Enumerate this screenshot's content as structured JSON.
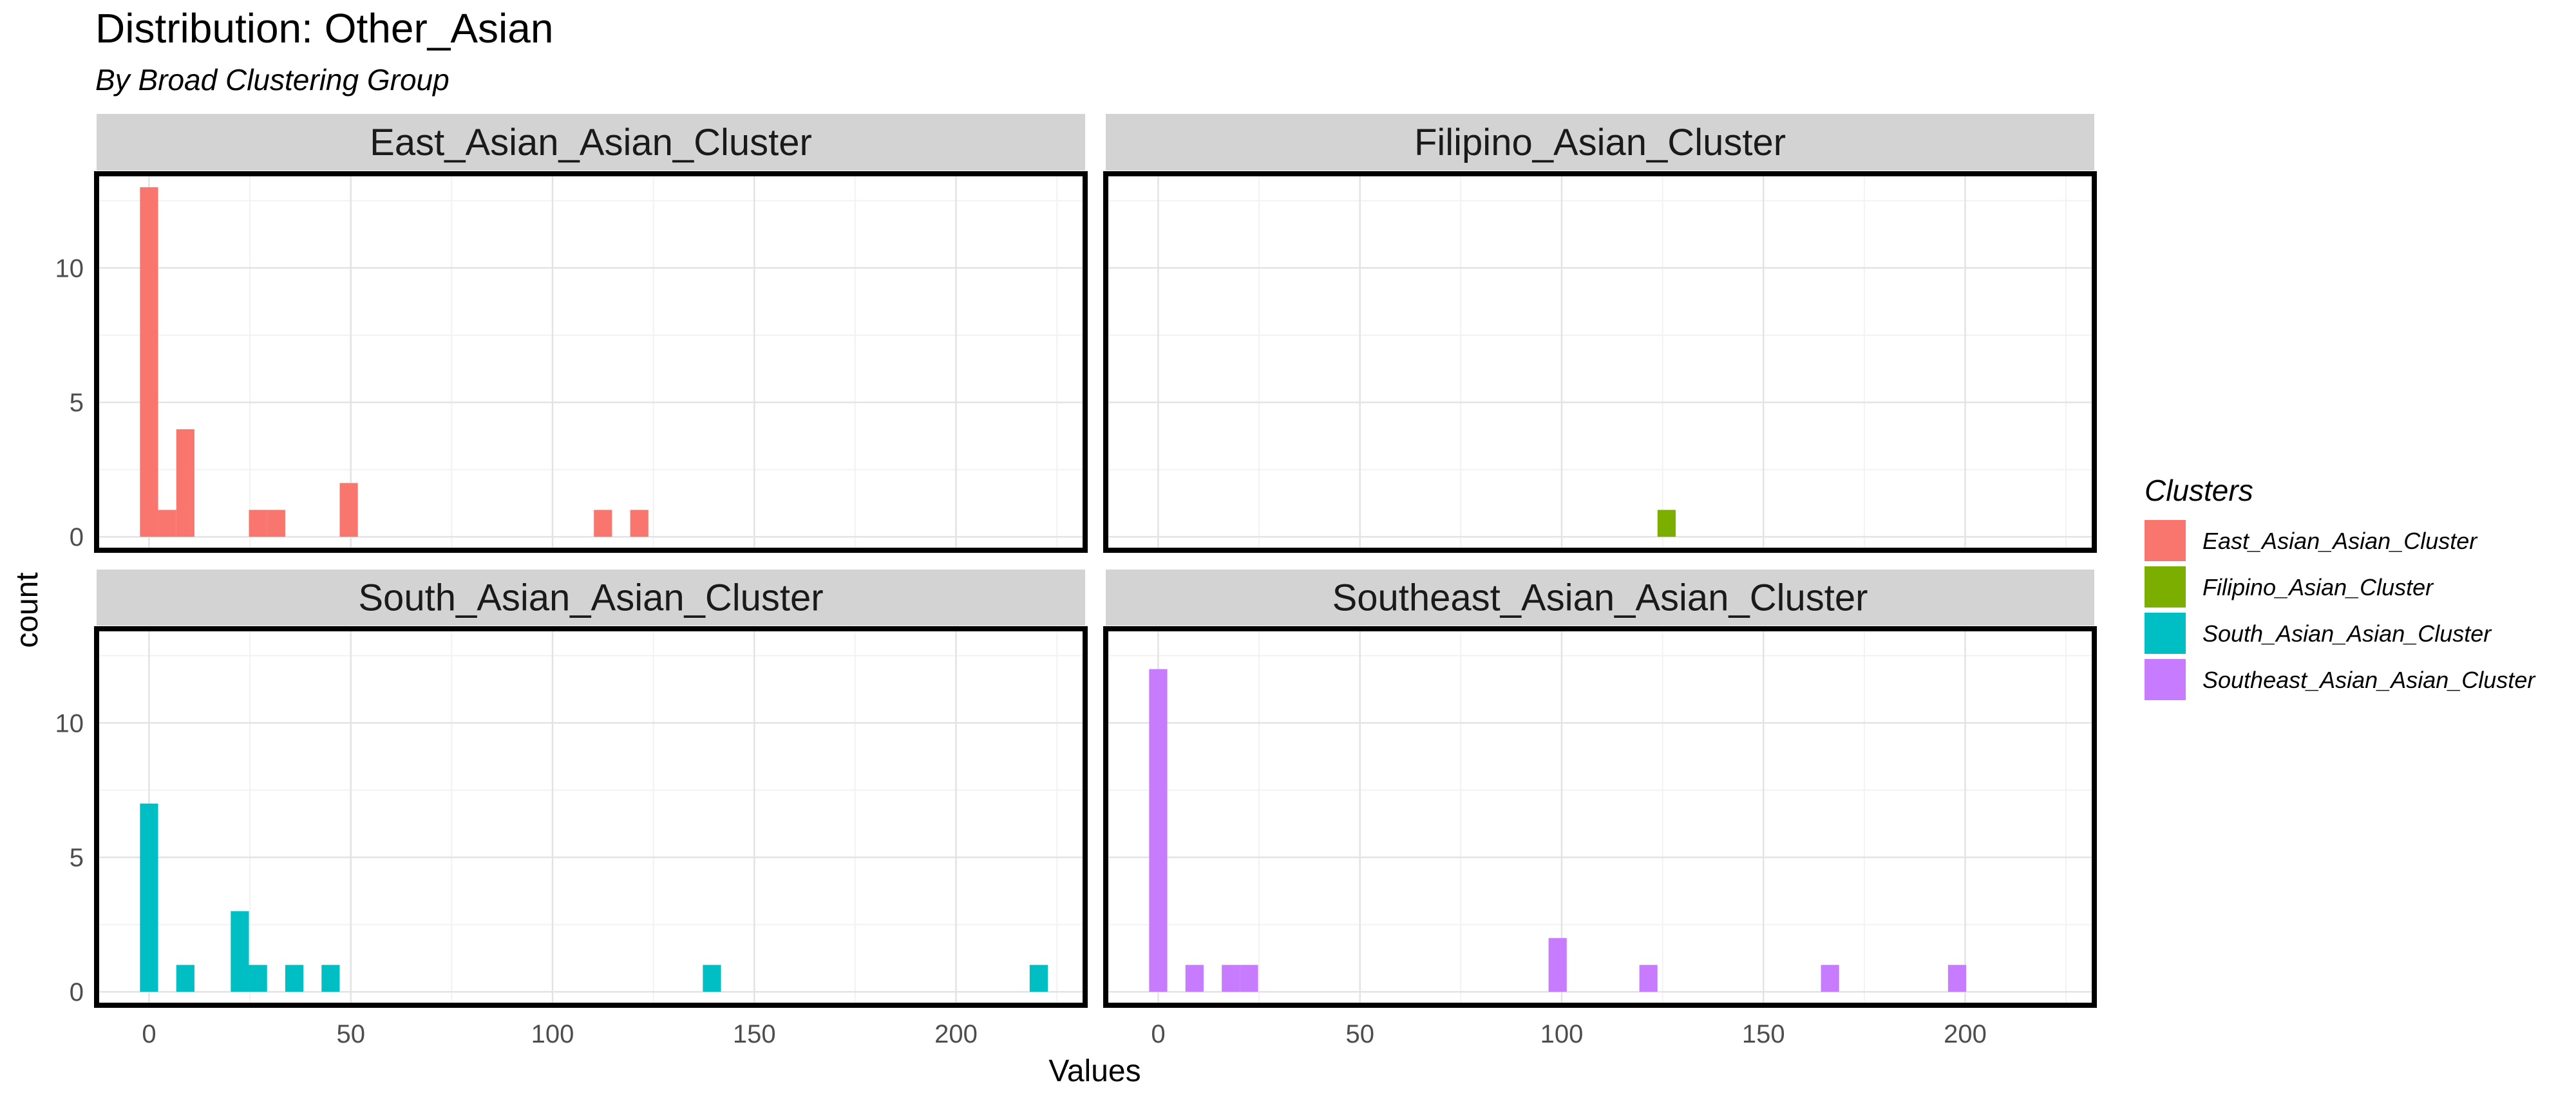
{
  "chart_data": {
    "type": "bar",
    "title": "Distribution: Other_Asian",
    "subtitle": "By Broad Clustering Group",
    "xlabel": "Values",
    "ylabel": "count",
    "xlim": [
      -13,
      232
    ],
    "ylim": [
      -0.5,
      13.5
    ],
    "x_ticks": [
      0,
      50,
      100,
      150,
      200
    ],
    "y_ticks": [
      0,
      5,
      10
    ],
    "bin_width": 4.5,
    "grid": true,
    "legend_position": "right",
    "legend_title": "Clusters",
    "panels": [
      {
        "name": "East_Asian_Asian_Cluster",
        "color": "#F8766D",
        "bins": [
          {
            "x": 0,
            "count": 13
          },
          {
            "x": 4.5,
            "count": 1
          },
          {
            "x": 9,
            "count": 4
          },
          {
            "x": 27,
            "count": 1
          },
          {
            "x": 31.5,
            "count": 1
          },
          {
            "x": 49.5,
            "count": 2
          },
          {
            "x": 112.5,
            "count": 1
          },
          {
            "x": 121.5,
            "count": 1
          }
        ]
      },
      {
        "name": "Filipino_Asian_Cluster",
        "color": "#7CAE00",
        "bins": [
          {
            "x": 126,
            "count": 1
          }
        ]
      },
      {
        "name": "South_Asian_Asian_Cluster",
        "color": "#00BFC4",
        "bins": [
          {
            "x": 0,
            "count": 7
          },
          {
            "x": 9,
            "count": 1
          },
          {
            "x": 22.5,
            "count": 3
          },
          {
            "x": 27,
            "count": 1
          },
          {
            "x": 36,
            "count": 1
          },
          {
            "x": 45,
            "count": 1
          },
          {
            "x": 139.5,
            "count": 1
          },
          {
            "x": 220.5,
            "count": 1
          }
        ]
      },
      {
        "name": "Southeast_Asian_Asian_Cluster",
        "color": "#C77CFF",
        "bins": [
          {
            "x": 0,
            "count": 12
          },
          {
            "x": 9,
            "count": 1
          },
          {
            "x": 18,
            "count": 1
          },
          {
            "x": 22.5,
            "count": 1
          },
          {
            "x": 99,
            "count": 2
          },
          {
            "x": 121.5,
            "count": 1
          },
          {
            "x": 166.5,
            "count": 1
          },
          {
            "x": 198,
            "count": 1
          }
        ]
      }
    ]
  }
}
